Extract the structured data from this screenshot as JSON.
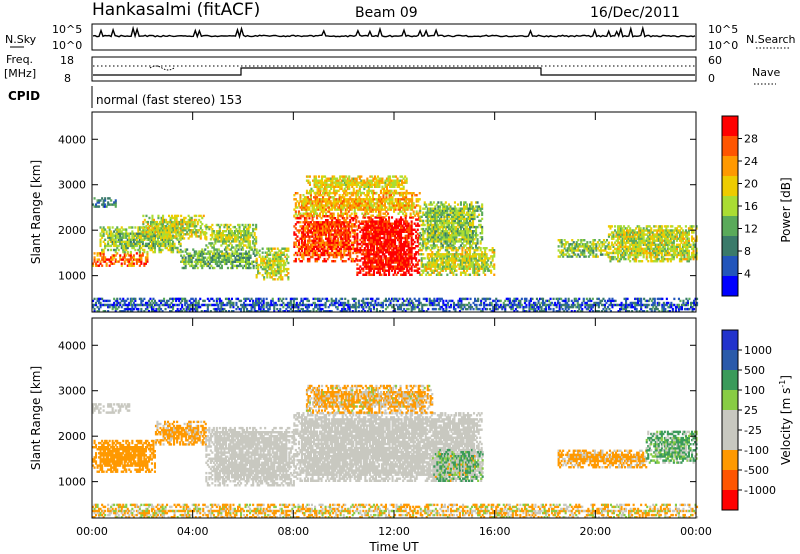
{
  "header": {
    "station": "Hankasalmi (fitACF)",
    "beam": "Beam 09",
    "date": "16/Dec/2011"
  },
  "top_panels": {
    "nsky_label": "N.Sky",
    "nsearch_label": "N.Search",
    "nsky_ticks": [
      "10^5",
      "10^0"
    ],
    "nsearch_ticks": [
      "10^5",
      "10^0"
    ],
    "freq_label_line1": "Freq.",
    "freq_label_line2": "[MHz]",
    "freq_ticks": [
      "18",
      "8"
    ],
    "nave_label": "Nave",
    "nave_ticks": [
      "60",
      "0"
    ],
    "cpid_label": "CPID",
    "cpid_text": "normal (fast stereo) 153"
  },
  "colors": {
    "power_scale": [
      "#0000ff",
      "#2255bb",
      "#3a7a6a",
      "#5aaa5a",
      "#aadd33",
      "#eecc00",
      "#ff9900",
      "#ff5500",
      "#ff0000"
    ],
    "velocity_scale": [
      "#ff0000",
      "#ff5500",
      "#ff9900",
      "#c8c8c0",
      "#c8c8c0",
      "#88cc44",
      "#3a9a5a",
      "#2a5aaa",
      "#2233cc"
    ],
    "ground_scatter": "#c8c8c0"
  },
  "chart_data": [
    {
      "type": "heatmap",
      "name": "power",
      "xlabel": "",
      "ylabel": "Slant Range [km]",
      "x_ticks": [
        "00:00",
        "04:00",
        "08:00",
        "12:00",
        "16:00",
        "20:00",
        "00:00"
      ],
      "y_ticks": [
        "1000",
        "2000",
        "3000",
        "4000"
      ],
      "ylim": [
        200,
        4600
      ],
      "xlim_hours": [
        0,
        24
      ],
      "colorbar_label": "Power [dB]",
      "colorbar_ticks": [
        "4",
        "8",
        "12",
        "16",
        "20",
        "24",
        "28"
      ],
      "colorbar_range": [
        0,
        30
      ],
      "regions": [
        {
          "t": [
            0.0,
            1.0
          ],
          "r": [
            2500,
            2700
          ],
          "db": 8
        },
        {
          "t": [
            0.0,
            2.2
          ],
          "r": [
            1200,
            1500
          ],
          "db": 24
        },
        {
          "t": [
            0.3,
            3.5
          ],
          "r": [
            1500,
            2050
          ],
          "db": 14
        },
        {
          "t": [
            2.0,
            4.5
          ],
          "r": [
            1800,
            2300
          ],
          "db": 16
        },
        {
          "t": [
            3.5,
            6.5
          ],
          "r": [
            1150,
            1600
          ],
          "db": 12
        },
        {
          "t": [
            4.5,
            6.5
          ],
          "r": [
            1600,
            2100
          ],
          "db": 15
        },
        {
          "t": [
            6.5,
            7.8
          ],
          "r": [
            900,
            1600
          ],
          "db": 16
        },
        {
          "t": [
            8.0,
            10.5
          ],
          "r": [
            1300,
            2300
          ],
          "db": 26
        },
        {
          "t": [
            10.5,
            13.0
          ],
          "r": [
            1000,
            2300
          ],
          "db": 29
        },
        {
          "t": [
            8.0,
            13.0
          ],
          "r": [
            2300,
            2800
          ],
          "db": 20
        },
        {
          "t": [
            8.5,
            12.5
          ],
          "r": [
            2800,
            3200
          ],
          "db": 18
        },
        {
          "t": [
            13.0,
            15.5
          ],
          "r": [
            1600,
            2600
          ],
          "db": 14
        },
        {
          "t": [
            13.0,
            16.0
          ],
          "r": [
            1000,
            1600
          ],
          "db": 16
        },
        {
          "t": [
            18.5,
            20.5
          ],
          "r": [
            1400,
            1800
          ],
          "db": 14
        },
        {
          "t": [
            20.5,
            24.0
          ],
          "r": [
            1300,
            2100
          ],
          "db": 16
        },
        {
          "t": [
            0.0,
            24.0
          ],
          "r": [
            200,
            500
          ],
          "db": 6
        }
      ]
    },
    {
      "type": "heatmap",
      "name": "velocity",
      "xlabel": "Time UT",
      "ylabel": "Slant Range [km]",
      "x_ticks": [
        "00:00",
        "04:00",
        "08:00",
        "12:00",
        "16:00",
        "20:00",
        "00:00"
      ],
      "y_ticks": [
        "1000",
        "2000",
        "3000",
        "4000"
      ],
      "ylim": [
        200,
        4600
      ],
      "xlim_hours": [
        0,
        24
      ],
      "colorbar_label": "Velocity [m s^-1]",
      "colorbar_ticks": [
        "1000",
        "500",
        "100",
        "25",
        "-25",
        "-100",
        "-500",
        "-1000"
      ],
      "regions": [
        {
          "t": [
            0.0,
            1.5
          ],
          "r": [
            2500,
            2700
          ],
          "v": 0
        },
        {
          "t": [
            0.0,
            2.5
          ],
          "r": [
            1200,
            1900
          ],
          "v": -300
        },
        {
          "t": [
            2.5,
            4.5
          ],
          "r": [
            1800,
            2300
          ],
          "v": -200
        },
        {
          "t": [
            4.5,
            8.0
          ],
          "r": [
            900,
            2200
          ],
          "v": 0
        },
        {
          "t": [
            8.0,
            15.5
          ],
          "r": [
            1000,
            2500
          ],
          "v": 0
        },
        {
          "t": [
            8.5,
            13.5
          ],
          "r": [
            2500,
            3100
          ],
          "v": -150
        },
        {
          "t": [
            13.5,
            15.5
          ],
          "r": [
            1000,
            1700
          ],
          "v": 80
        },
        {
          "t": [
            18.5,
            22.0
          ],
          "r": [
            1300,
            1700
          ],
          "v": -200
        },
        {
          "t": [
            22.0,
            24.0
          ],
          "r": [
            1400,
            2100
          ],
          "v": 120
        },
        {
          "t": [
            0.0,
            24.0
          ],
          "r": [
            200,
            500
          ],
          "v": -100
        }
      ]
    }
  ]
}
